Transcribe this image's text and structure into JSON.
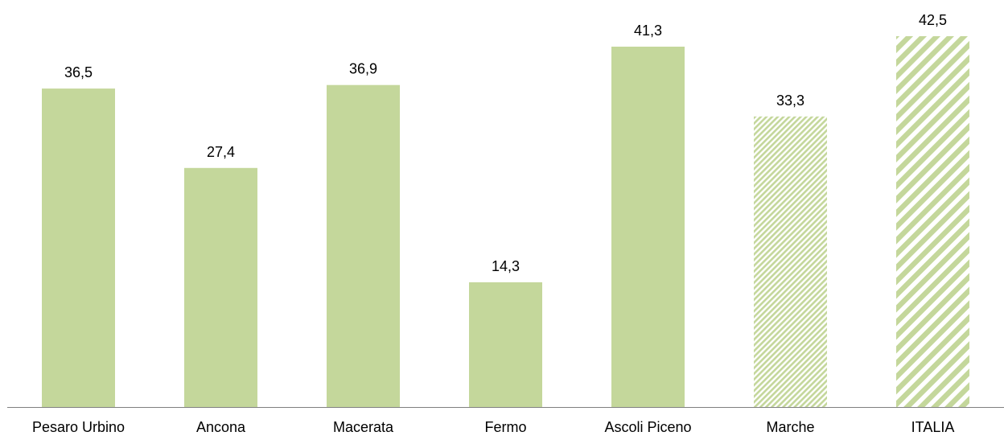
{
  "chart_data": {
    "type": "bar",
    "categories": [
      "Pesaro Urbino",
      "Ancona",
      "Macerata",
      "Fermo",
      "Ascoli Piceno",
      "Marche",
      "ITALIA"
    ],
    "values": [
      36.5,
      27.4,
      36.9,
      14.3,
      41.3,
      33.3,
      42.5
    ],
    "value_labels": [
      "36,5",
      "27,4",
      "36,9",
      "14,3",
      "41,3",
      "33,3",
      "42,5"
    ],
    "fills": [
      "solid",
      "solid",
      "solid",
      "solid",
      "solid",
      "fine-hatch",
      "wide-hatch"
    ],
    "bar_color": "#c4d79b",
    "axis_color": "#808080",
    "ylim": [
      0,
      45
    ],
    "grid": false,
    "title": "",
    "xlabel": "",
    "ylabel": ""
  }
}
